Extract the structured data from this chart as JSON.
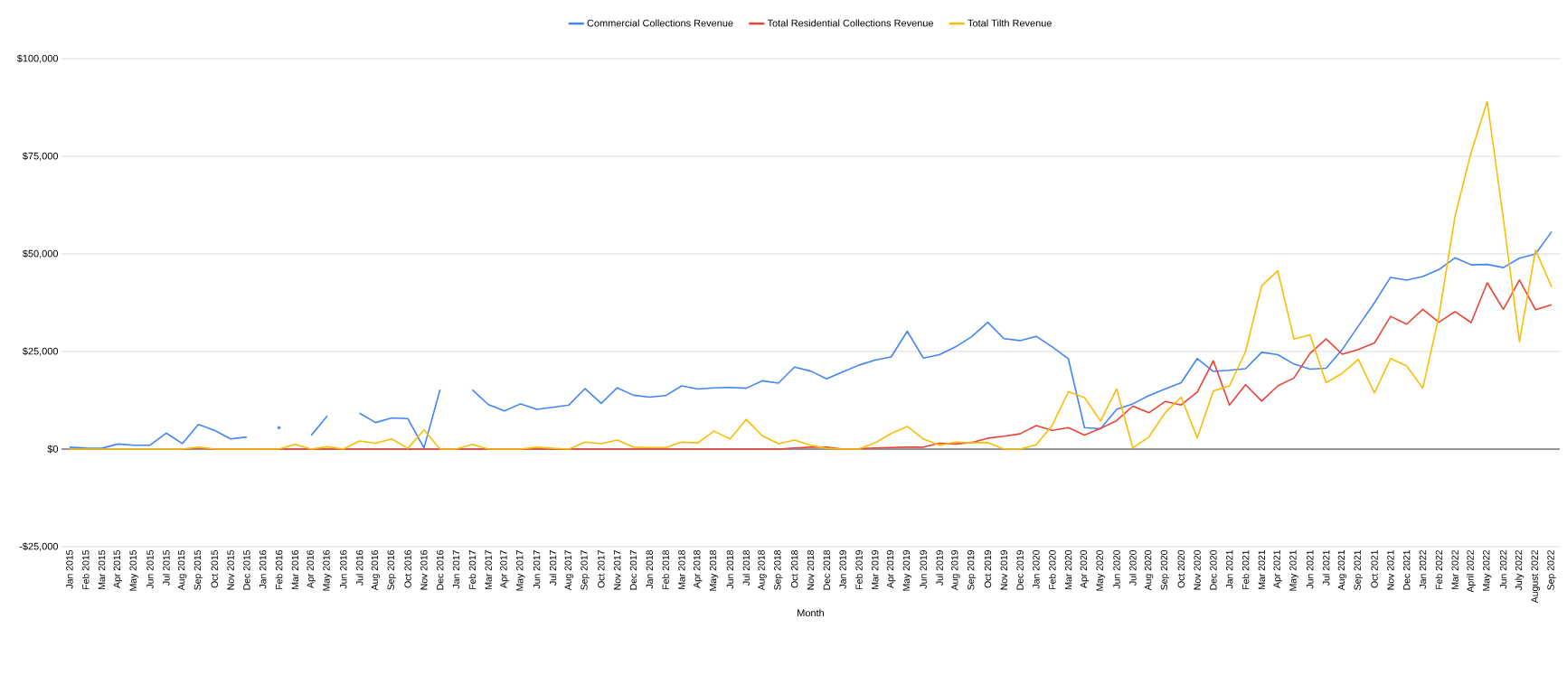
{
  "chart_data": {
    "type": "line",
    "xlabel": "Month",
    "categories": [
      "Jan 2015",
      "Feb 2015",
      "Mar 2015",
      "Apr 2015",
      "May 2015",
      "Jun 2015",
      "Jul 2015",
      "Aug 2015",
      "Sep 2015",
      "Oct 2015",
      "Nov 2015",
      "Dec 2015",
      "Jan 2016",
      "Feb 2016",
      "Mar 2016",
      "Apr 2016",
      "May 2016",
      "Jun 2016",
      "Jul 2016",
      "Aug 2016",
      "Sep 2016",
      "Oct 2016",
      "Nov 2016",
      "Dec 2016",
      "Jan 2017",
      "Feb 2017",
      "Mar 2017",
      "Apr 2017",
      "May 2017",
      "Jun 2017",
      "Jul 2017",
      "Aug 2017",
      "Sep 2017",
      "Oct 2017",
      "Nov 2017",
      "Dec 2017",
      "Jan 2018",
      "Feb 2018",
      "Mar 2018",
      "Apr 2018",
      "May 2018",
      "Jun 2018",
      "Jul 2018",
      "Aug 2018",
      "Sep 2018",
      "Oct 2018",
      "Nov 2018",
      "Dec 2018",
      "Jan 2019",
      "Feb 2019",
      "Mar 2019",
      "Apr 2019",
      "May 2019",
      "Jun 2019",
      "Jul 2019",
      "Aug 2019",
      "Sep 2019",
      "Oct 2019",
      "Nov 2019",
      "Dec 2019",
      "Jan 2020",
      "Feb 2020",
      "Mar 2020",
      "Apr 2020",
      "May 2020",
      "Jun 2020",
      "Jul 2020",
      "Aug 2020",
      "Sep 2020",
      "Oct 2020",
      "Nov 2020",
      "Dec 2020",
      "Jan 2021",
      "Feb 2021",
      "Mar 2021",
      "Apr 2021",
      "May 2021",
      "Jun 2021",
      "Jul 2021",
      "Aug 2021",
      "Sep 2021",
      "Oct 2021",
      "Nov 2021",
      "Dec 2021",
      "Jan 2022",
      "Feb 2022",
      "Mar 2022",
      "April 2022",
      "May 2022",
      "Jun 2022",
      "July 2022",
      "August 2022",
      "Sep 2022"
    ],
    "series": [
      {
        "name": "Commercial Collections Revenue",
        "color": "#4285f4",
        "values": [
          500,
          300,
          200,
          1300,
          1000,
          1000,
          4100,
          1400,
          6300,
          4800,
          2600,
          3100,
          null,
          5500,
          null,
          3500,
          8500,
          null,
          9200,
          6800,
          8000,
          7800,
          300,
          15200,
          null,
          15200,
          11400,
          9800,
          11600,
          10200,
          10700,
          11300,
          15500,
          11700,
          15700,
          13800,
          13300,
          13700,
          16200,
          15400,
          15700,
          15800,
          15600,
          17500,
          16900,
          21000,
          20000,
          18000,
          19800,
          21500,
          22800,
          23600,
          30200,
          23300,
          24200,
          26200,
          28800,
          32500,
          28300,
          27800,
          28900,
          26200,
          23100,
          5500,
          5200,
          10200,
          11600,
          13700,
          15400,
          17000,
          23200,
          19900,
          20200,
          20600,
          24800,
          24200,
          21800,
          20500,
          20700,
          25500,
          31500,
          37500,
          44000,
          43300,
          44200,
          46000,
          49000,
          47200,
          47300,
          46500,
          48900,
          50000,
          55700
        ]
      },
      {
        "name": "Total Residential Collections Revenue",
        "color": "#ea4335",
        "values": [
          null,
          null,
          null,
          null,
          null,
          null,
          null,
          0,
          300,
          0,
          0,
          0,
          0,
          0,
          0,
          0,
          0,
          0,
          0,
          0,
          0,
          0,
          0,
          0,
          0,
          0,
          0,
          0,
          0,
          0,
          0,
          0,
          0,
          0,
          0,
          0,
          0,
          0,
          0,
          0,
          0,
          0,
          0,
          0,
          0,
          300,
          500,
          500,
          0,
          100,
          300,
          400,
          500,
          500,
          1500,
          1300,
          1700,
          2800,
          3300,
          3900,
          6000,
          4800,
          5500,
          3600,
          5300,
          7300,
          11000,
          9300,
          12200,
          11300,
          14600,
          22600,
          11300,
          16500,
          12300,
          16200,
          18200,
          24500,
          28200,
          24300,
          25500,
          27200,
          34000,
          32000,
          35800,
          32500,
          35200,
          32400,
          42600,
          35800,
          43300,
          35700,
          37000
        ]
      },
      {
        "name": "Total Tilth Revenue",
        "color": "#fbbc04",
        "values": [
          0,
          0,
          0,
          0,
          0,
          0,
          0,
          0,
          500,
          0,
          0,
          0,
          0,
          0,
          1200,
          0,
          600,
          0,
          2100,
          1500,
          2600,
          200,
          4900,
          0,
          0,
          1200,
          0,
          0,
          0,
          500,
          200,
          0,
          1800,
          1400,
          2300,
          500,
          400,
          400,
          1800,
          1600,
          4600,
          2600,
          7600,
          3400,
          1400,
          2300,
          1000,
          200,
          0,
          0,
          1600,
          4000,
          5800,
          2600,
          1000,
          1800,
          1600,
          1700,
          0,
          0,
          1100,
          6100,
          14700,
          13200,
          7200,
          15400,
          300,
          3100,
          9300,
          13300,
          2900,
          14900,
          16200,
          25000,
          41800,
          45700,
          28200,
          29300,
          17000,
          19400,
          23000,
          14400,
          23200,
          21300,
          15600,
          34000,
          59600,
          76000,
          89000,
          59000,
          27500,
          51000,
          41500
        ]
      }
    ],
    "ylim": [
      -25000,
      100000
    ],
    "yticks": [
      {
        "value": -25000,
        "label": "-$25,000"
      },
      {
        "value": 0,
        "label": "$0"
      },
      {
        "value": 25000,
        "label": "$25,000"
      },
      {
        "value": 50000,
        "label": "$50,000"
      },
      {
        "value": 75000,
        "label": "$75,000"
      },
      {
        "value": 100000,
        "label": "$100,000"
      }
    ],
    "grid": "y",
    "legend": "top",
    "line_style": "solid",
    "marker": "none"
  }
}
